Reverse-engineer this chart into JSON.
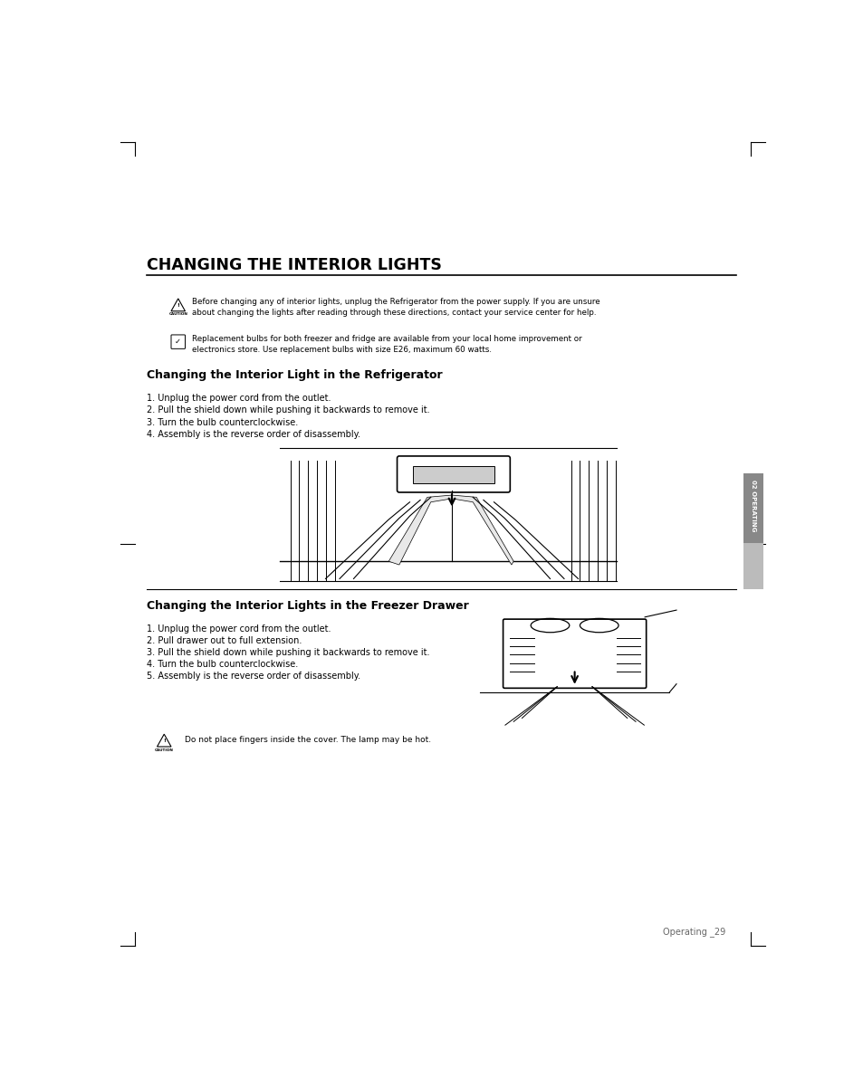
{
  "bg_color": "#ffffff",
  "page_width": 9.54,
  "page_height": 11.9,
  "main_title": "CHANGING THE INTERIOR LIGHTS",
  "caution1_line1": "Before changing any of interior lights, unplug the Refrigerator from the power supply. If you are unsure",
  "caution1_line2": "about changing the lights after reading through these directions, contact your service center for help.",
  "note1_line1": "Replacement bulbs for both freezer and fridge are available from your local home improvement or",
  "note1_line2": "electronics store. Use replacement bulbs with size E26, maximum 60 watts.",
  "section1_title": "Changing the Interior Light in the Refrigerator",
  "section1_steps": [
    "1. Unplug the power cord from the outlet.",
    "2. Pull the shield down while pushing it backwards to remove it.",
    "3. Turn the bulb counterclockwise.",
    "4. Assembly is the reverse order of disassembly."
  ],
  "section2_title": "Changing the Interior Lights in the Freezer Drawer",
  "section2_steps": [
    "1. Unplug the power cord from the outlet.",
    "2. Pull drawer out to full extension.",
    "3. Pull the shield down while pushing it backwards to remove it.",
    "4. Turn the bulb counterclockwise.",
    "5. Assembly is the reverse order of disassembly."
  ],
  "caution2_text": "Do not place fingers inside the cover. The lamp may be hot.",
  "footer_text": "Operating _29",
  "tab_text": "02 OPERATING",
  "tab_dark_color": "#888888",
  "tab_light_color": "#bbbbbb",
  "text_color": "#000000"
}
